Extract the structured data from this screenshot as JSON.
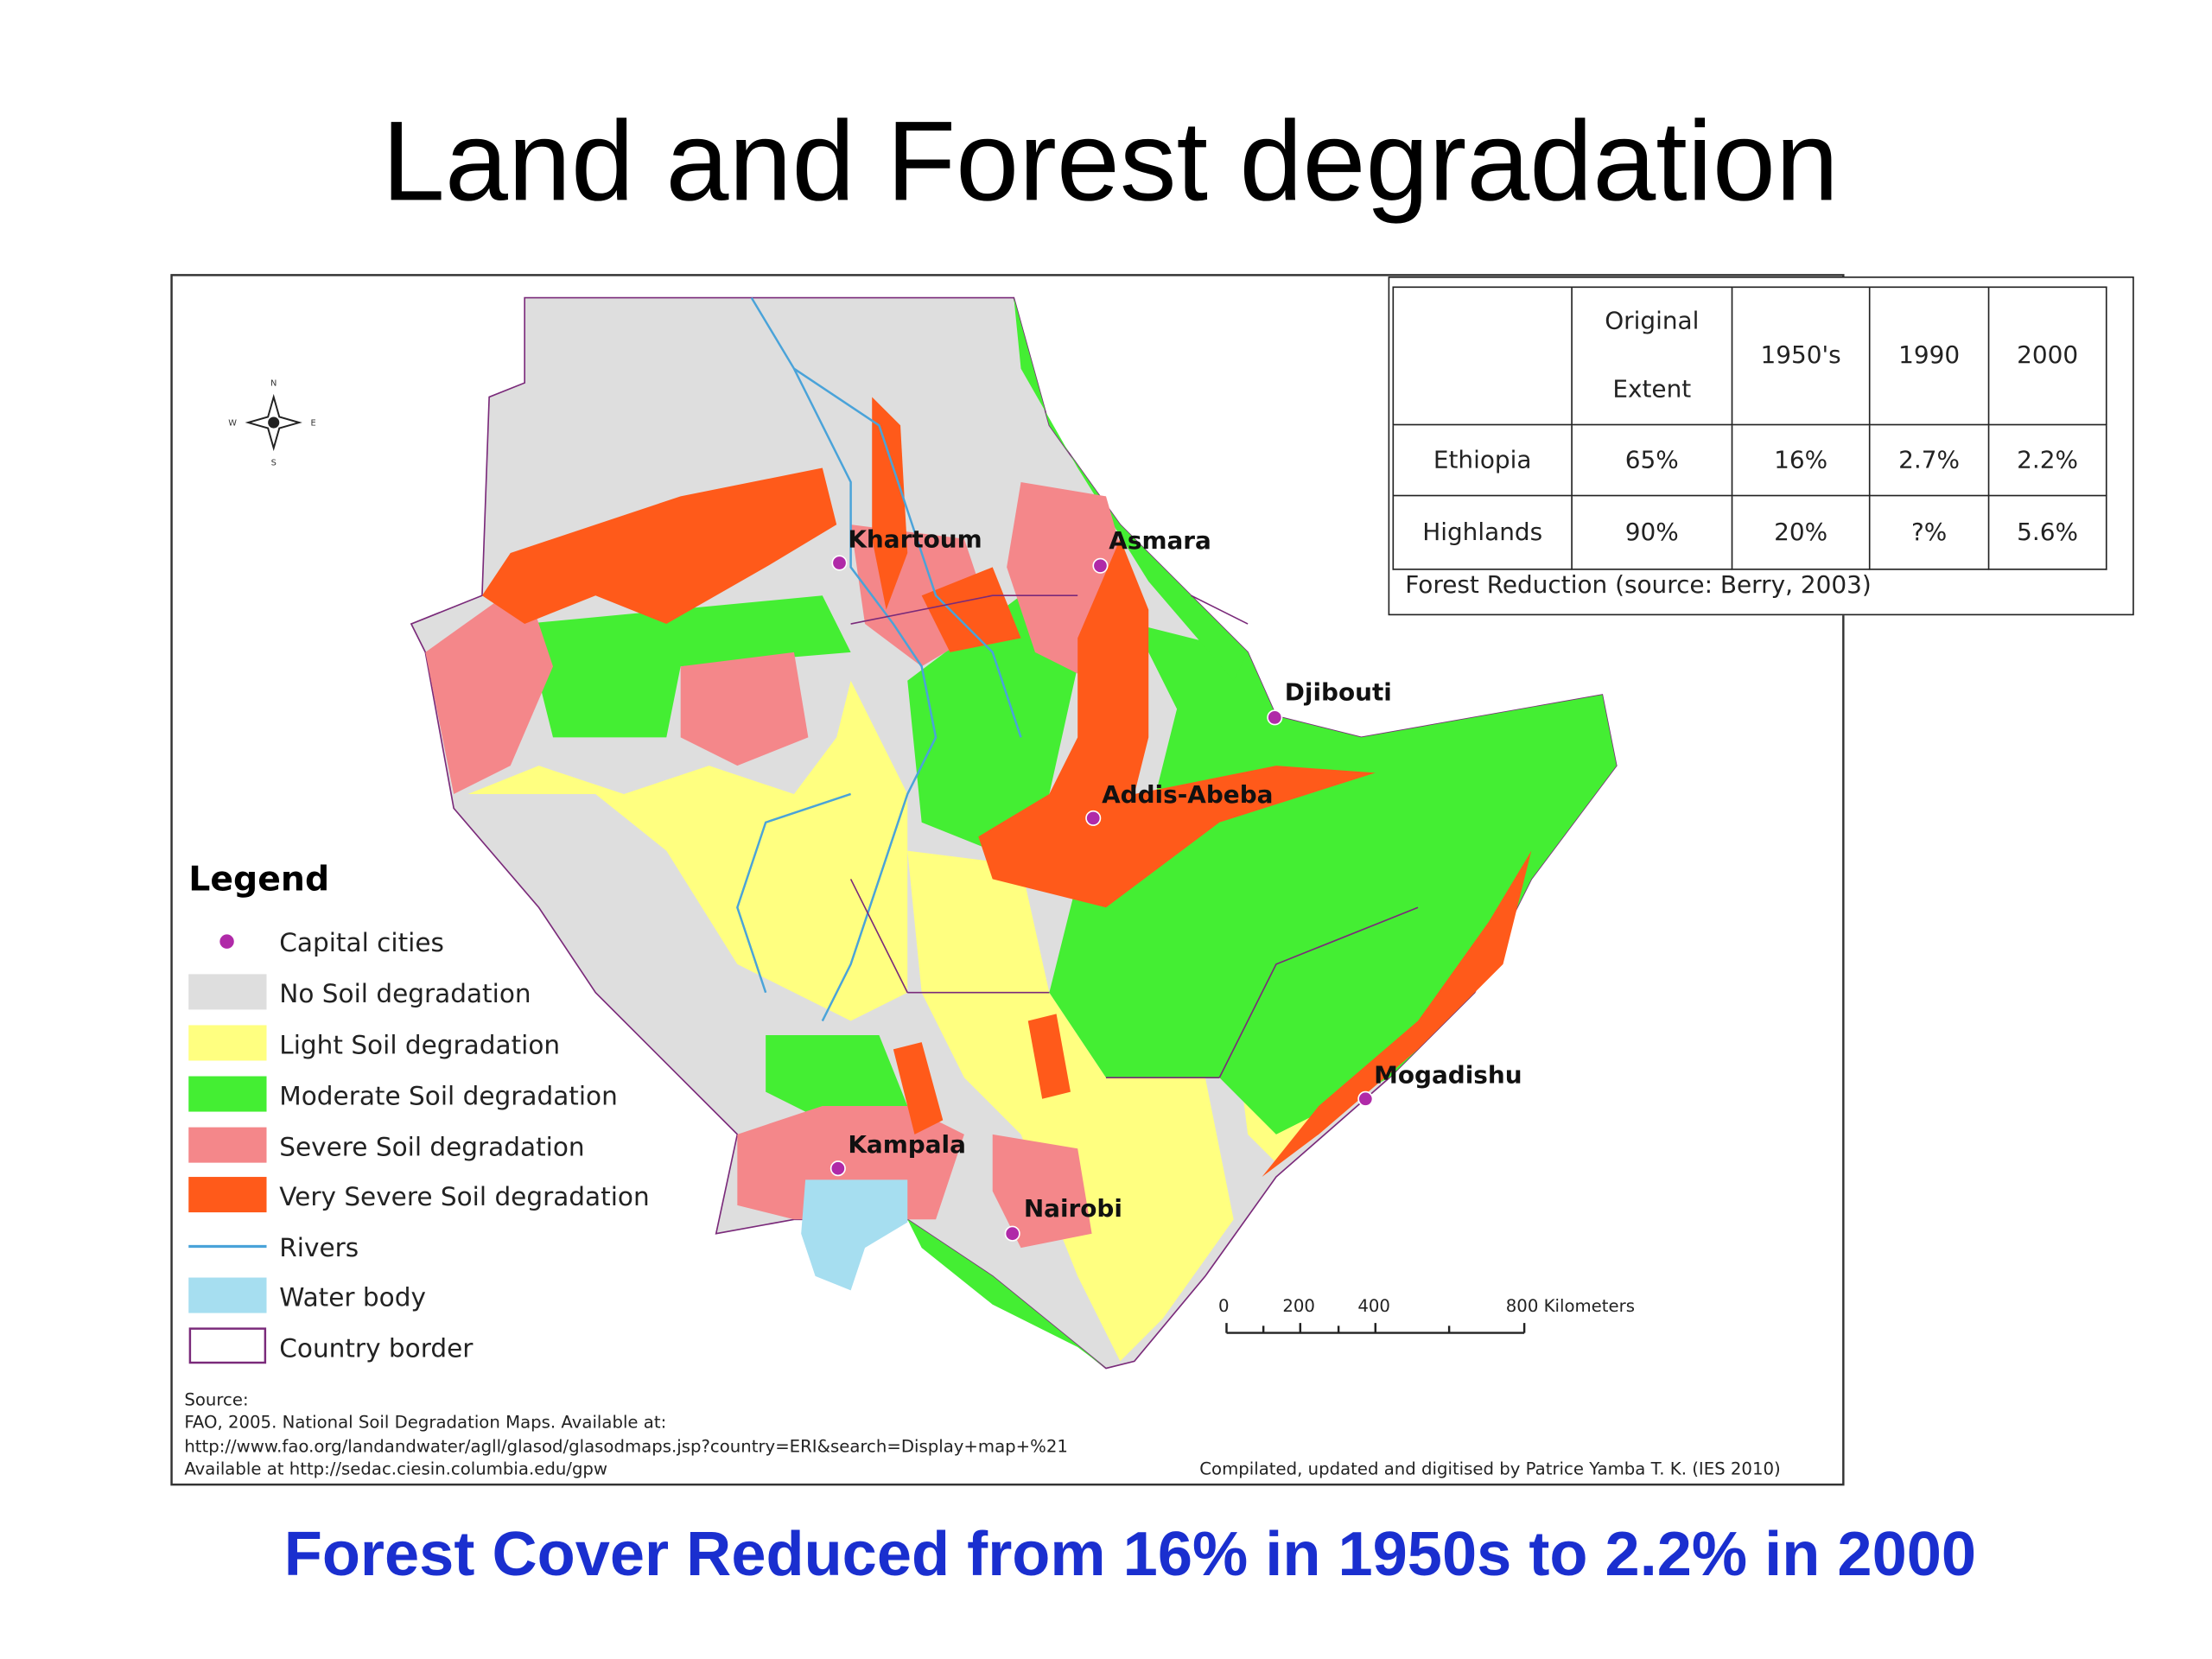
{
  "title": "Land and Forest degradation",
  "map": {
    "compass": [
      "N",
      "E",
      "S",
      "W"
    ],
    "cities": [
      "Khartoum",
      "Asmara",
      "Djibouti",
      "Addis-Abeba",
      "Mogadishu",
      "Kampala",
      "Nairobi"
    ],
    "legend": {
      "title": "Legend",
      "items": [
        "Capital cities",
        "No Soil degradation",
        "Light Soil degradation",
        "Moderate Soil degradation",
        "Severe Soil degradation",
        "Very Severe Soil degradation",
        "Rivers",
        "Water body",
        "Country border"
      ]
    },
    "scale_bar": [
      "0",
      "200",
      "400",
      "800 Kilometers"
    ],
    "source": [
      "Source:",
      "FAO, 2005. National Soil Degradation Maps. Available at:",
      "http://www.fao.org/landandwater/agll/glasod/glasodmaps.jsp?country=ERI&search=Display+map+%21",
      "Available at http://sedac.ciesin.columbia.edu/gpw"
    ],
    "credit": "Compilated, updated and digitised by Patrice Yamba T. K. (IES 2010)"
  },
  "table": {
    "header": [
      "Original Extent",
      "1950's",
      "1990",
      "2000"
    ],
    "rows": [
      [
        "Ethiopia",
        "65%",
        "16%",
        "2.7%",
        "2.2%"
      ],
      [
        "Highlands",
        "90%",
        "20%",
        "?%",
        "5.6%"
      ]
    ],
    "caption": "Forest Reduction (source: Berry, 2003)"
  },
  "caption": "Forest Cover Reduced from 16% in 1950s to 2.2% in 2000"
}
